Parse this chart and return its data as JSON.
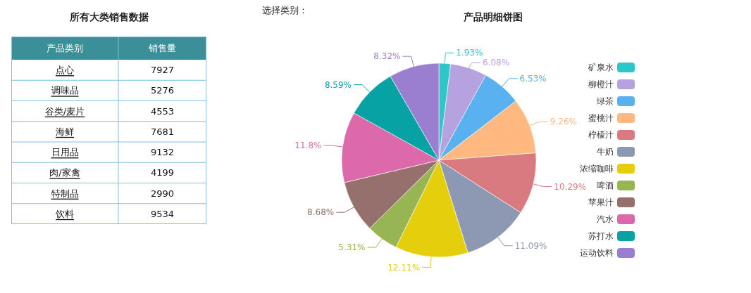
{
  "chart_data": [
    {
      "type": "other",
      "title": "所有大类销售数据",
      "xlabel": "产品类别",
      "ylabel": "销售量",
      "categories": [
        "点心",
        "调味品",
        "谷类/麦片",
        "海鲜",
        "日用品",
        "肉/家禽",
        "特制品",
        "饮料"
      ],
      "values": [
        7927,
        5276,
        4553,
        7681,
        9132,
        4199,
        2990,
        9534
      ],
      "data_labels": true
    },
    {
      "type": "pie",
      "title": "产品明细饼图",
      "annotations": [
        "选择类别："
      ],
      "categories": [
        "矿泉水",
        "柳橙汁",
        "绿茶",
        "蜜桃汁",
        "柠檬汁",
        "牛奶",
        "浓缩咖啡",
        "啤酒",
        "苹果汁",
        "汽水",
        "苏打水",
        "运动饮料"
      ],
      "values": [
        1.93,
        6.08,
        6.53,
        9.26,
        10.29,
        11.09,
        12.11,
        5.31,
        8.68,
        11.8,
        8.59,
        8.32
      ],
      "colors": [
        "#2ec7c9",
        "#b6a2de",
        "#5ab1ef",
        "#ffb980",
        "#d87a80",
        "#8d98b3",
        "#e5cf0d",
        "#97b552",
        "#95706d",
        "#dc69aa",
        "#07a2a4",
        "#9a7fd1"
      ],
      "value_labels": [
        "1.93%",
        "6.08%",
        "6.53%",
        "9.26%",
        "10.29%",
        "11.09%",
        "12.11%",
        "5.31%",
        "8.68%",
        "11.8%",
        "8.59%",
        "8.32%"
      ],
      "legend": "right"
    }
  ]
}
